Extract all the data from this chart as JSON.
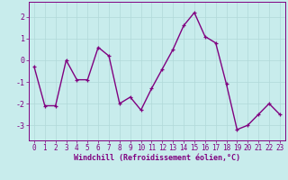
{
  "x": [
    0,
    1,
    2,
    3,
    4,
    5,
    6,
    7,
    8,
    9,
    10,
    11,
    12,
    13,
    14,
    15,
    16,
    17,
    18,
    19,
    20,
    21,
    22,
    23
  ],
  "y": [
    -0.3,
    -2.1,
    -2.1,
    0.0,
    -0.9,
    -0.9,
    0.6,
    0.2,
    -2.0,
    -1.7,
    -2.3,
    -1.3,
    -0.4,
    0.5,
    1.6,
    2.2,
    1.1,
    0.8,
    -1.1,
    -3.2,
    -3.0,
    -2.5,
    -2.0,
    -2.5
  ],
  "line_color": "#800080",
  "marker": "+",
  "bg_color": "#c8ecec",
  "grid_color": "#b0d8d8",
  "xlabel": "Windchill (Refroidissement éolien,°C)",
  "xlim": [
    -0.5,
    23.5
  ],
  "ylim": [
    -3.7,
    2.7
  ],
  "yticks": [
    -3,
    -2,
    -1,
    0,
    1,
    2
  ],
  "xticks": [
    0,
    1,
    2,
    3,
    4,
    5,
    6,
    7,
    8,
    9,
    10,
    11,
    12,
    13,
    14,
    15,
    16,
    17,
    18,
    19,
    20,
    21,
    22,
    23
  ],
  "tick_color": "#800080",
  "label_color": "#800080",
  "spine_color": "#800080",
  "linewidth": 1.0,
  "markersize": 3,
  "tick_fontsize": 5.5,
  "xlabel_fontsize": 6.0
}
